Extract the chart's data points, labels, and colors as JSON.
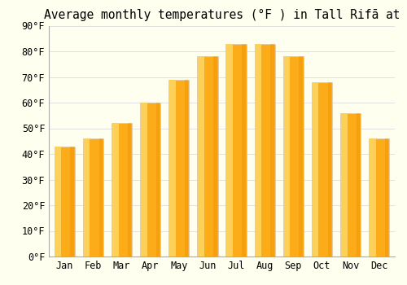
{
  "title": "Average monthly temperatures (°F ) in Tall Rifā at",
  "months": [
    "Jan",
    "Feb",
    "Mar",
    "Apr",
    "May",
    "Jun",
    "Jul",
    "Aug",
    "Sep",
    "Oct",
    "Nov",
    "Dec"
  ],
  "values": [
    43,
    46,
    52,
    60,
    69,
    78,
    83,
    83,
    78,
    68,
    56,
    46
  ],
  "bar_color_main": "#FBAC18",
  "bar_color_left": "#FDD05A",
  "bar_color_right": "#F08C00",
  "ylim": [
    0,
    90
  ],
  "ytick_step": 10,
  "background_color": "#FFFFF0",
  "grid_color": "#e0e0e0",
  "title_fontsize": 10.5,
  "tick_fontsize": 8.5
}
